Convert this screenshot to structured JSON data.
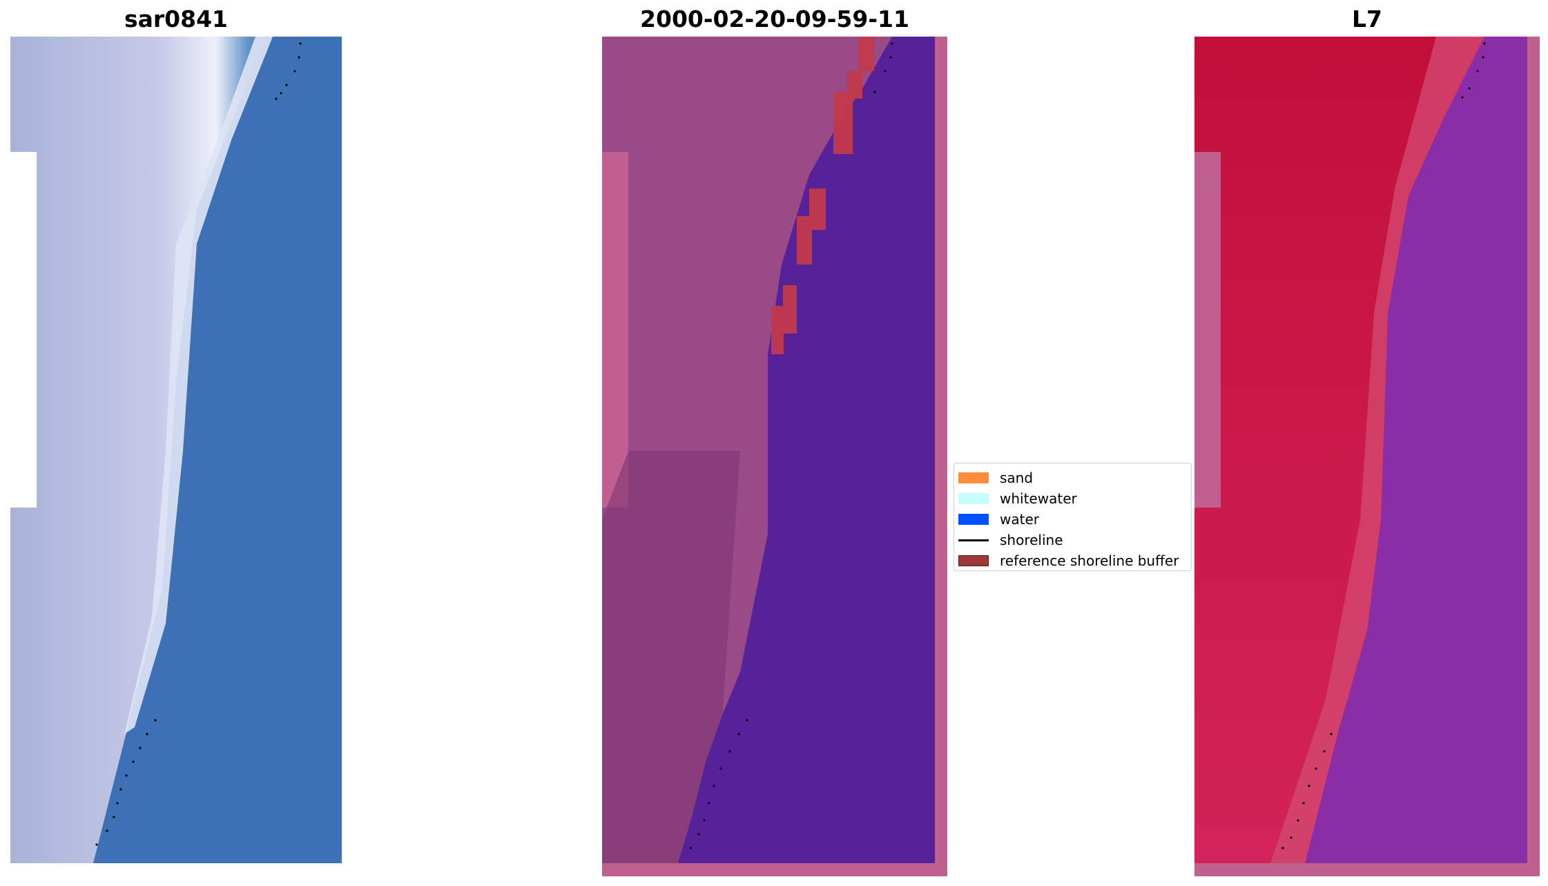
{
  "panels": [
    {
      "title": "sar0841"
    },
    {
      "title": "2000-02-20-09-59-11"
    },
    {
      "title": "L7"
    }
  ],
  "legend": {
    "items": [
      {
        "label": "sand",
        "color": "#ff8c3a",
        "kind": "patch"
      },
      {
        "label": "whitewater",
        "color": "#c8fdfd",
        "kind": "patch"
      },
      {
        "label": "water",
        "color": "#0050ff",
        "kind": "patch"
      },
      {
        "label": "shoreline",
        "color": "#000000",
        "kind": "line"
      },
      {
        "label": "reference shoreline buffer",
        "color": "#9c3a3a",
        "kind": "patch"
      }
    ]
  },
  "colors": {
    "rgb_sand": "#b8b8dc",
    "rgb_surf": "#eef0fa",
    "rgb_water": "#3d74b8",
    "class_land": "#9a4a86",
    "class_water": "#55229a",
    "class_buffer": "#c23a4a",
    "nodata_pink": "#c06090",
    "ndwi_land": "#c8163e",
    "ndwi_water": "#8a2ea8"
  }
}
